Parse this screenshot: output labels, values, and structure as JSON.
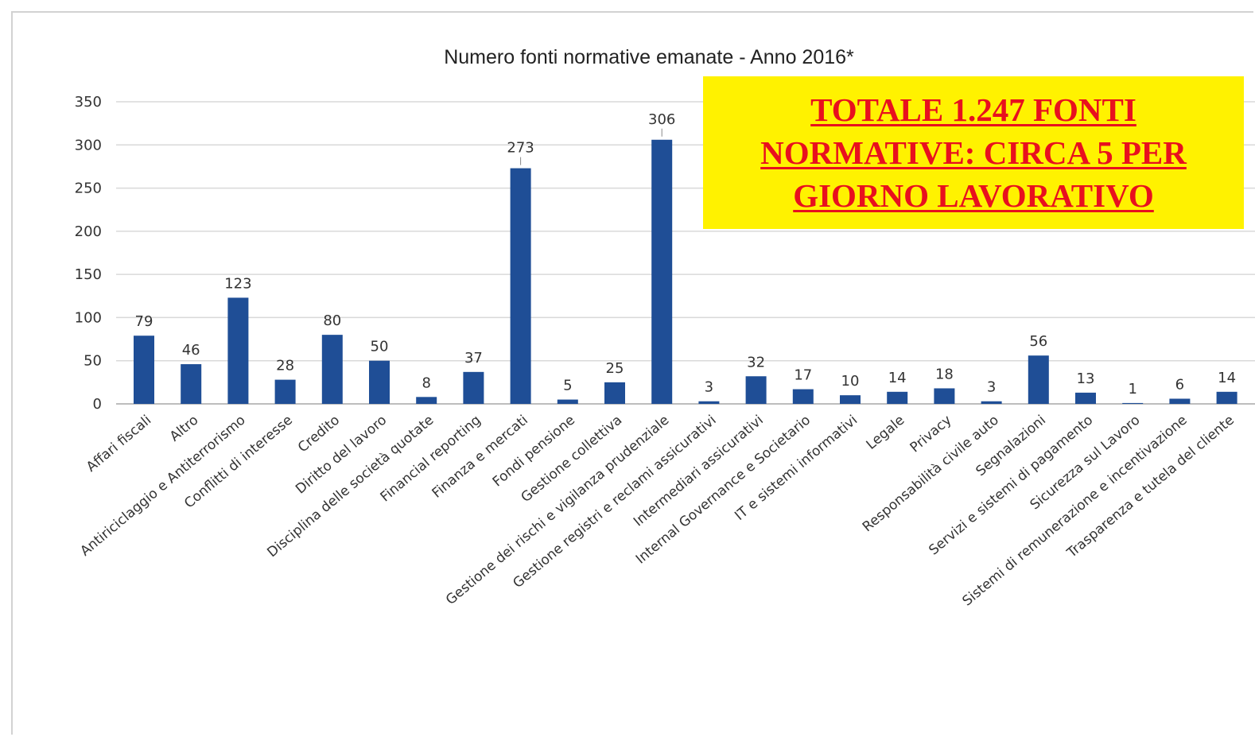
{
  "chart_data": {
    "type": "bar",
    "title": "Numero fonti normative emanate - Anno 2016*",
    "xlabel": "",
    "ylabel": "",
    "ylim": [
      0,
      350
    ],
    "yticks": [
      0,
      50,
      100,
      150,
      200,
      250,
      300,
      350
    ],
    "grid": true,
    "bar_color": "#1f4e96",
    "categories": [
      "Affari fiscali",
      "Altro",
      "Antiriciclaggio e Antiterrorismo",
      "Conflitti di interesse",
      "Credito",
      "Diritto del lavoro",
      "Disciplina delle società quotate",
      "Financial reporting",
      "Finanza e mercati",
      "Fondi pensione",
      "Gestione collettiva",
      "Gestione dei rischi e vigilanza prudenziale",
      "Gestione registri e reclami assicurativi",
      "Intermediari assicurativi",
      "Internal Governance e Societario",
      "IT e sistemi informativi",
      "Legale",
      "Privacy",
      "Responsabilità civile auto",
      "Segnalazioni",
      "Servizi e sistemi di pagamento",
      "Sicurezza sul Lavoro",
      "Sistemi di remunerazione e incentivazione",
      "Trasparenza e tutela del cliente"
    ],
    "values": [
      79,
      46,
      123,
      28,
      80,
      50,
      8,
      37,
      273,
      5,
      25,
      306,
      3,
      32,
      17,
      10,
      14,
      18,
      3,
      56,
      13,
      1,
      6,
      14
    ]
  },
  "callout": {
    "text": "TOTALE 1.247 FONTI NORMATIVE: CIRCA 5 PER GIORNO LAVORATIVO",
    "background": "#fff200",
    "color": "#e8101e"
  }
}
